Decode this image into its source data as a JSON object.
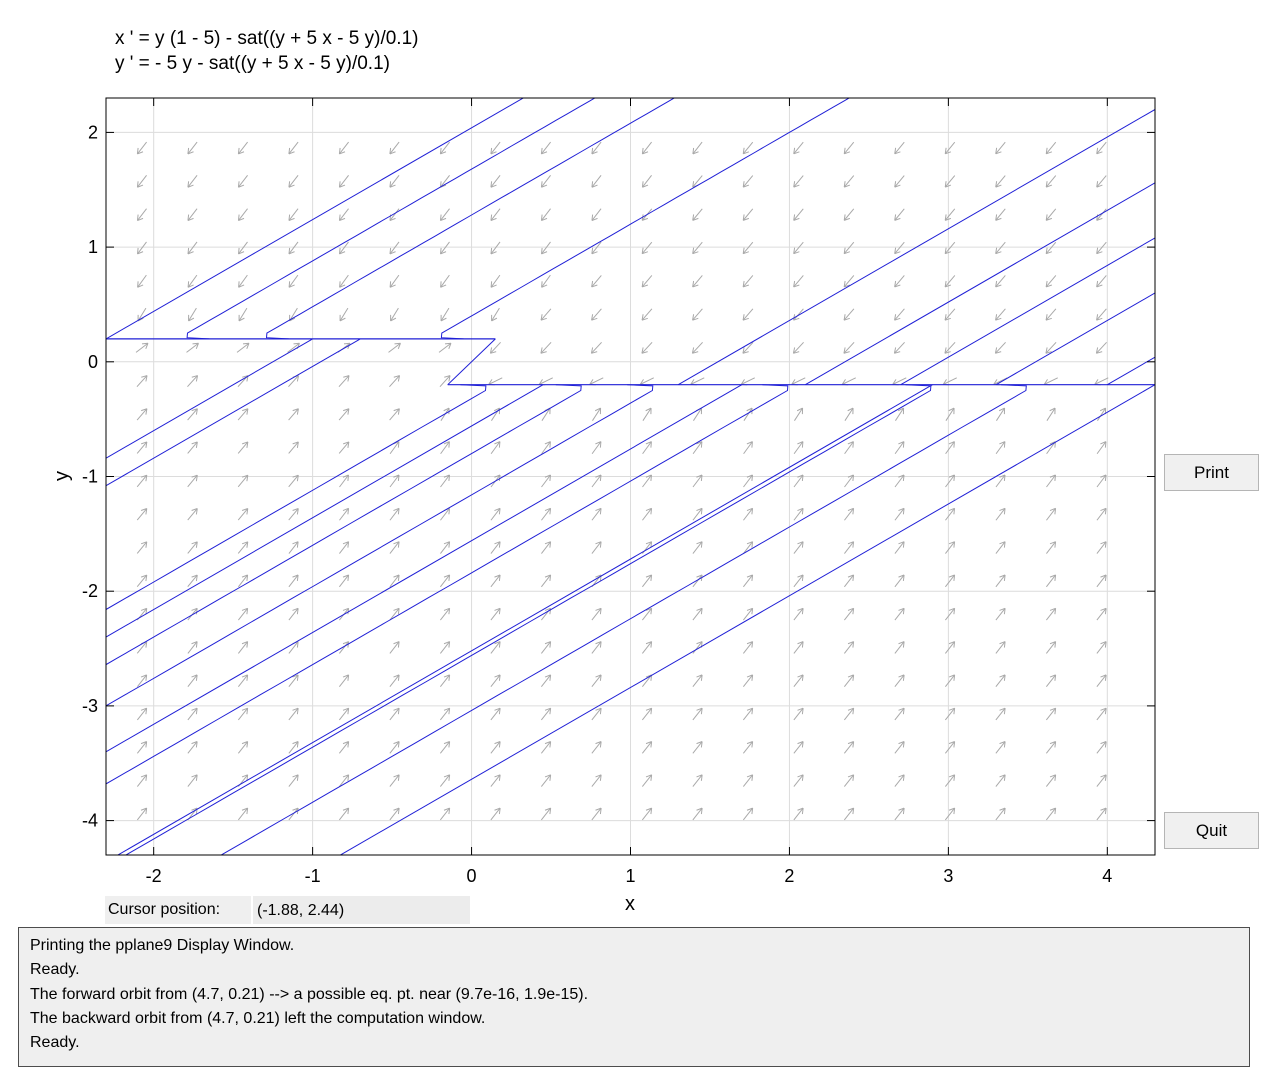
{
  "equations": {
    "line1": "x ' = y (1 - 5) - sat((y + 5 x - 5 y)/0.1)",
    "line2": "y ' = - 5 y - sat((y + 5 x - 5 y)/0.1)"
  },
  "chart_data": {
    "type": "phase-plane",
    "xlabel": "x",
    "ylabel": "y",
    "xlim": [
      -2.3,
      4.3
    ],
    "ylim": [
      -4.3,
      2.3
    ],
    "xticks": [
      "-2",
      "-1",
      "0",
      "1",
      "2",
      "3",
      "4"
    ],
    "yticks": [
      "-4",
      "-3",
      "-2",
      "-1",
      "0",
      "1",
      "2"
    ],
    "grid": true,
    "upper_state_y": 0.2,
    "lower_state_y": -0.2,
    "trajectory_upper_asymptotes": [
      -1.85,
      -1.35,
      -0.25
    ],
    "trajectory_lower_asymptotes": [
      0.15,
      0.75,
      1.2,
      2.05,
      2.95,
      3.55
    ],
    "upper_region_lines": [
      -2.3,
      1.3,
      2.1,
      2.7,
      3.3,
      4.0
    ],
    "lower_region_lines": [
      -2.3,
      -1.0,
      -0.7,
      0.45,
      1.7,
      2.9,
      4.3
    ],
    "colors": {
      "trajectory": "#1f1fd6",
      "arrows": "#a9a9a9",
      "grid": "#dcdcdc"
    }
  },
  "buttons": {
    "print": "Print",
    "quit": "Quit"
  },
  "cursor": {
    "label": "Cursor position:",
    "value": "(-1.88, 2.44)"
  },
  "messages": [
    "Printing the pplane9 Display Window.",
    "Ready.",
    "The forward orbit from (4.7, 0.21) --> a possible eq. pt. near (9.7e-16, 1.9e-15).",
    "The backward orbit from (4.7, 0.21) left the computation window.",
    "Ready."
  ]
}
